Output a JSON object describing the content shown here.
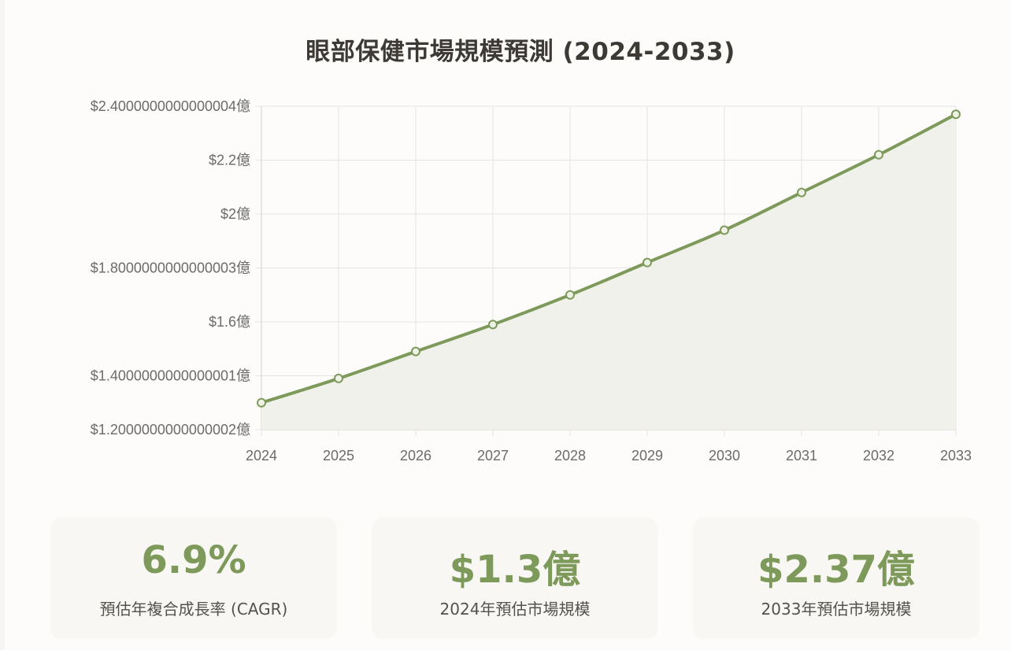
{
  "colors": {
    "accent": "#7d9a5b",
    "area_fill": "#f0f1ea",
    "grid": "#e4e4e2",
    "text_dark": "#3d3a36",
    "text_muted": "#6b6b6b"
  },
  "chart_data": {
    "type": "line",
    "title": "眼部保健市場規模預測 (2024-2033)",
    "x": [
      "2024",
      "2025",
      "2026",
      "2027",
      "2028",
      "2029",
      "2030",
      "2031",
      "2032",
      "2033"
    ],
    "values": [
      1.3,
      1.39,
      1.49,
      1.59,
      1.7,
      1.82,
      1.94,
      2.08,
      2.22,
      2.37
    ],
    "ylim": [
      1.2000000000000002,
      2.4000000000000004
    ],
    "y_ticks": [
      {
        "value": 2.4000000000000004,
        "label": "$2.4000000000000004億"
      },
      {
        "value": 2.2,
        "label": "$2.2億"
      },
      {
        "value": 2.0,
        "label": "$2億"
      },
      {
        "value": 1.8000000000000003,
        "label": "$1.8000000000000003億"
      },
      {
        "value": 1.6,
        "label": "$1.6億"
      },
      {
        "value": 1.4000000000000001,
        "label": "$1.4000000000000001億"
      },
      {
        "value": 1.2000000000000002,
        "label": "$1.2000000000000002億"
      }
    ],
    "area_filled": true,
    "grid": true,
    "legend": "none"
  },
  "stats": [
    {
      "value": "6.9%",
      "label": "預估年複合成長率 (CAGR)"
    },
    {
      "value": "$1.3億",
      "label": "2024年預估市場規模"
    },
    {
      "value": "$2.37億",
      "label": "2033年預估市場規模"
    }
  ]
}
